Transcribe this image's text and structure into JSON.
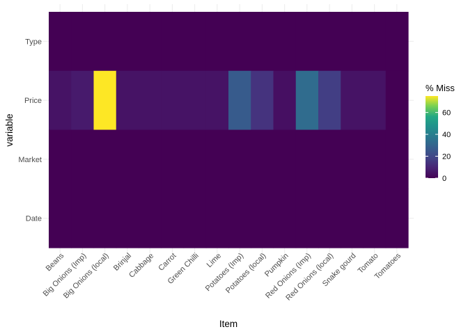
{
  "chart_data": {
    "type": "heatmap",
    "xlabel": "Item",
    "ylabel": "variable",
    "x_categories": [
      "Beans",
      "Big Onions (Imp)",
      "Big Onions (local)",
      "Brinjal",
      "Cabbage",
      "Carrot",
      "Green Chilli",
      "Lime",
      "Potatoes (Imp)",
      "Potatoes (local)",
      "Pumpkin",
      "Red Onions (Imp)",
      "Red Onions (local)",
      "Snake gourd",
      "Tomato",
      "Tomatoes"
    ],
    "y_categories": [
      "Type",
      "Price",
      "Market",
      "Date"
    ],
    "values": [
      [
        0,
        0,
        0,
        0,
        0,
        0,
        0,
        0,
        0,
        0,
        0,
        0,
        0,
        0,
        0,
        0
      ],
      [
        5,
        7,
        75,
        5,
        5,
        5,
        5,
        5,
        27,
        14,
        4,
        33,
        17,
        5,
        5,
        0
      ],
      [
        0,
        0,
        0,
        0,
        0,
        0,
        0,
        0,
        0,
        0,
        0,
        0,
        0,
        0,
        0,
        0
      ],
      [
        0,
        0,
        0,
        0,
        0,
        0,
        0,
        0,
        0,
        0,
        0,
        0,
        0,
        0,
        0,
        0
      ]
    ],
    "color_scale": "viridis",
    "value_range": [
      0,
      75
    ],
    "legend": {
      "title": "% Miss",
      "ticks": [
        0,
        20,
        40,
        60
      ],
      "placement": "right"
    },
    "grid": true
  }
}
